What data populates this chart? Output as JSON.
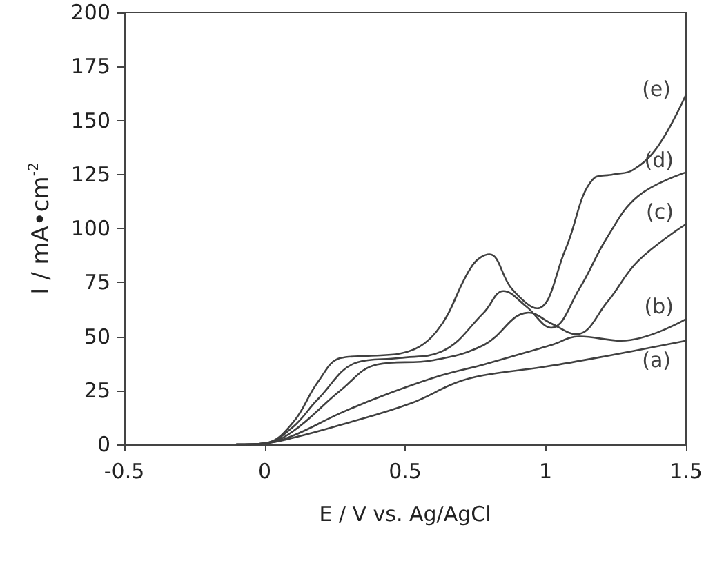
{
  "chart_data": {
    "type": "line",
    "xlabel": "E / V vs. Ag/AgCl",
    "ylabel": "I / mA•cm$^{-2}$",
    "xlim": [
      -0.5,
      1.5
    ],
    "xticks": [
      -0.5,
      0,
      0.5,
      1,
      1.5
    ],
    "ylim": [
      0,
      200
    ],
    "yticks": [
      0,
      25,
      50,
      75,
      100,
      125,
      150,
      175,
      200
    ],
    "grid": false,
    "marker": "none",
    "line_style": "solid",
    "series": [
      {
        "name": "(a)",
        "color": "#404040",
        "x": [
          -0.1,
          0,
          0.1,
          0.27,
          0.52,
          0.68,
          0.78,
          1.0,
          1.22,
          1.5
        ],
        "values": [
          0,
          0.5,
          3,
          9,
          19,
          28.5,
          32,
          36,
          41,
          48
        ]
      },
      {
        "name": "(b)",
        "color": "#404040",
        "x": [
          -0.1,
          0,
          0.1,
          0.27,
          0.43,
          0.63,
          0.78,
          1.02,
          1.12,
          1.27,
          1.5
        ],
        "values": [
          0,
          0.5,
          4,
          14.5,
          23,
          32,
          37,
          46,
          50,
          48,
          58
        ]
      },
      {
        "name": "(c)",
        "color": "#404040",
        "x": [
          -0.1,
          0,
          0.1,
          0.27,
          0.4,
          0.6,
          0.78,
          0.94,
          1.02,
          1.11,
          1.22,
          1.33,
          1.5
        ],
        "values": [
          0,
          0.5,
          6,
          25,
          37,
          39,
          46,
          61,
          56,
          51,
          66,
          85,
          102
        ]
      },
      {
        "name": "(d)",
        "color": "#404040",
        "x": [
          -0.1,
          0,
          0.1,
          0.19,
          0.33,
          0.48,
          0.63,
          0.78,
          0.85,
          0.93,
          1.02,
          1.12,
          1.22,
          1.33,
          1.5
        ],
        "values": [
          0,
          0.5,
          8,
          21,
          38,
          40,
          43,
          61,
          71,
          64,
          54,
          72,
          96,
          115,
          126
        ]
      },
      {
        "name": "(e)",
        "color": "#404040",
        "x": [
          -0.1,
          0,
          0.1,
          0.19,
          0.27,
          0.37,
          0.48,
          0.61,
          0.74,
          0.8,
          0.88,
          0.97,
          1.07,
          1.17,
          1.24,
          1.31,
          1.4,
          1.5
        ],
        "values": [
          0,
          0.5,
          10,
          29,
          40,
          41,
          42,
          52,
          83,
          88,
          72,
          63,
          90,
          123,
          125,
          127,
          138,
          162
        ]
      }
    ],
    "legend": false
  }
}
